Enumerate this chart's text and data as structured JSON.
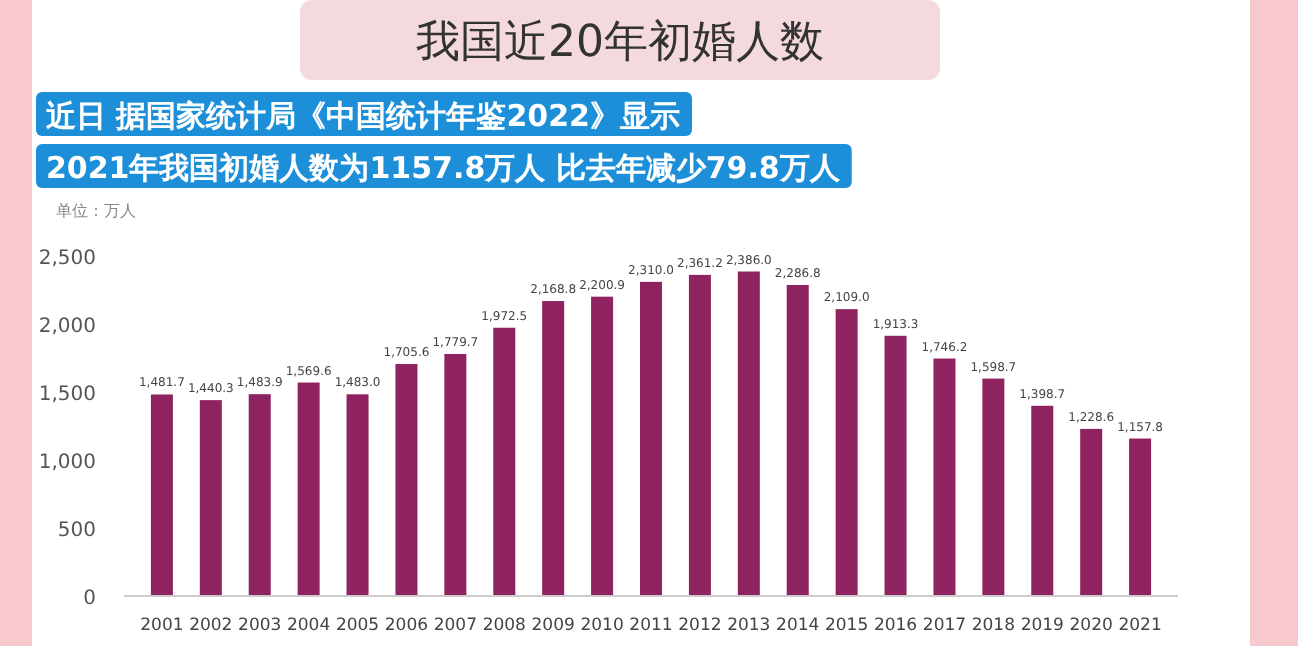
{
  "chart_data": {
    "type": "bar",
    "title": "我国近20年初婚人数",
    "ylabel": "单位：万人",
    "categories": [
      "2001",
      "2002",
      "2003",
      "2004",
      "2005",
      "2006",
      "2007",
      "2008",
      "2009",
      "2010",
      "2011",
      "2012",
      "2013",
      "2014",
      "2015",
      "2016",
      "2017",
      "2018",
      "2019",
      "2020",
      "2021"
    ],
    "values": [
      1481.7,
      1440.3,
      1483.9,
      1569.6,
      1483.0,
      1705.6,
      1779.7,
      1972.5,
      2168.8,
      2200.9,
      2310.0,
      2361.2,
      2386.0,
      2286.8,
      2109.0,
      1913.3,
      1746.2,
      1598.7,
      1398.7,
      1228.6,
      1157.8
    ],
    "value_labels": [
      "1,481.7",
      "1,440.3",
      "1,483.9",
      "1,569.6",
      "1,483.0",
      "1,705.6",
      "1,779.7",
      "1,972.5",
      "2,168.8",
      "2,200.9",
      "2,310.0",
      "2,361.2",
      "2,386.0",
      "2,286.8",
      "2,109.0",
      "1,913.3",
      "1,746.2",
      "1,598.7",
      "1,398.7",
      "1,228.6",
      "1,157.8"
    ],
    "color": "#8e2360",
    "ylim": [
      0,
      2500
    ],
    "yticks": [
      0,
      500,
      {
        "value": 1000,
        "label": "1,000"
      },
      {
        "value": 1500,
        "label": "1,500"
      },
      {
        "value": 2000,
        "label": "2,000"
      },
      {
        "value": 2500,
        "label": "2,500"
      }
    ],
    "grid": false,
    "annotations": [
      "近日 据国家统计局《中国统计年鉴2022》显示",
      "2021年我国初婚人数为1157.8万人 比去年减少79.8万人"
    ]
  }
}
